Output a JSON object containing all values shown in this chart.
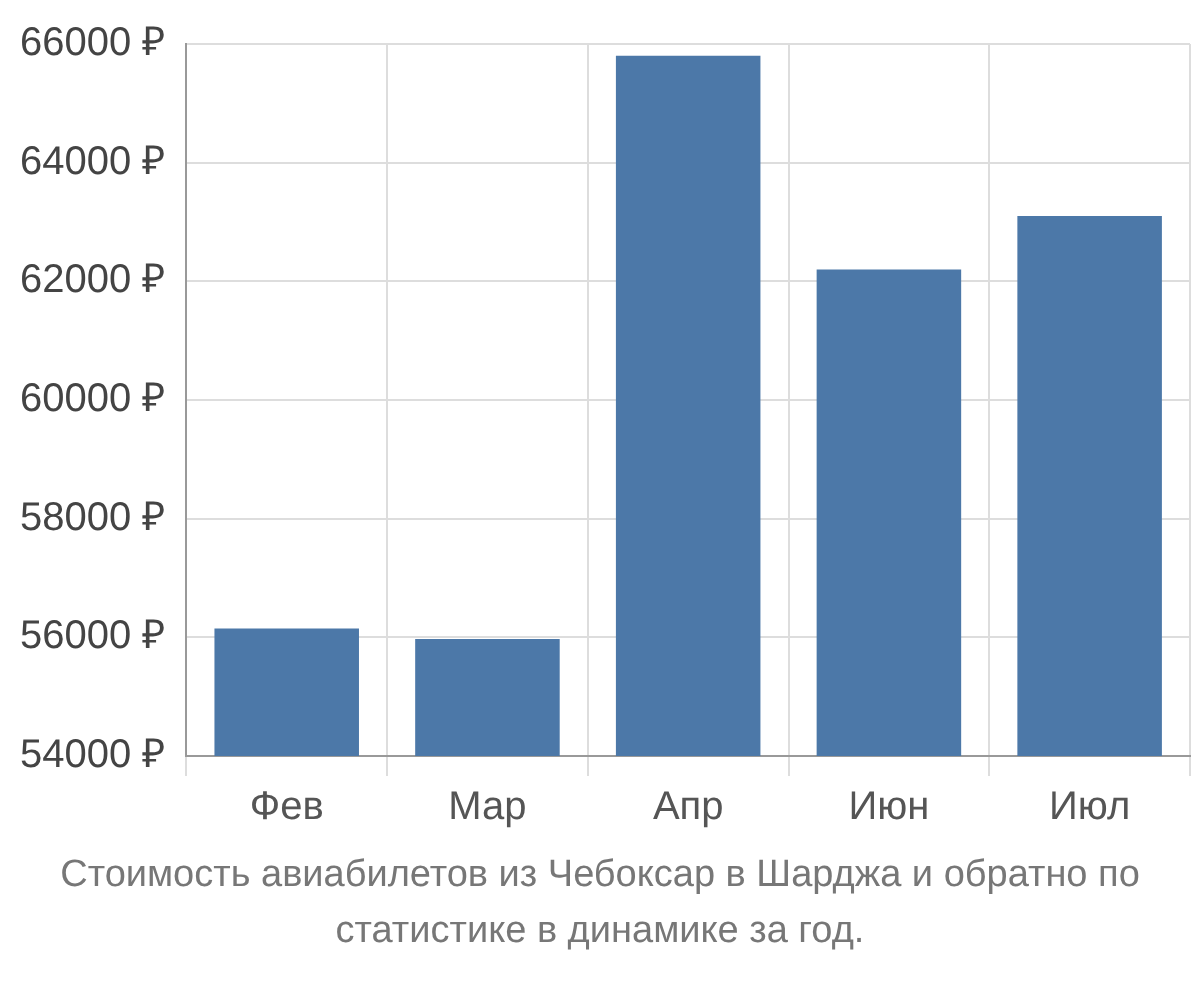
{
  "chart_data": {
    "type": "bar",
    "categories": [
      "Фев",
      "Мар",
      "Апр",
      "Июн",
      "Июл"
    ],
    "values": [
      56150,
      55970,
      65800,
      62200,
      63100
    ],
    "color": "#4c78a8",
    "ylim": [
      54000,
      66000
    ],
    "yticks": [
      {
        "value": 54000,
        "label": "54000 ₽"
      },
      {
        "value": 56000,
        "label": "56000 ₽"
      },
      {
        "value": 58000,
        "label": "58000 ₽"
      },
      {
        "value": 60000,
        "label": "60000 ₽"
      },
      {
        "value": 62000,
        "label": "62000 ₽"
      },
      {
        "value": 64000,
        "label": "64000 ₽"
      },
      {
        "value": 66000,
        "label": "66000 ₽"
      }
    ],
    "grid": true,
    "annotations": [
      "Стоимость авиабилетов из Чебоксар в Шарджа и обратно по статистике в динамике за год."
    ]
  }
}
